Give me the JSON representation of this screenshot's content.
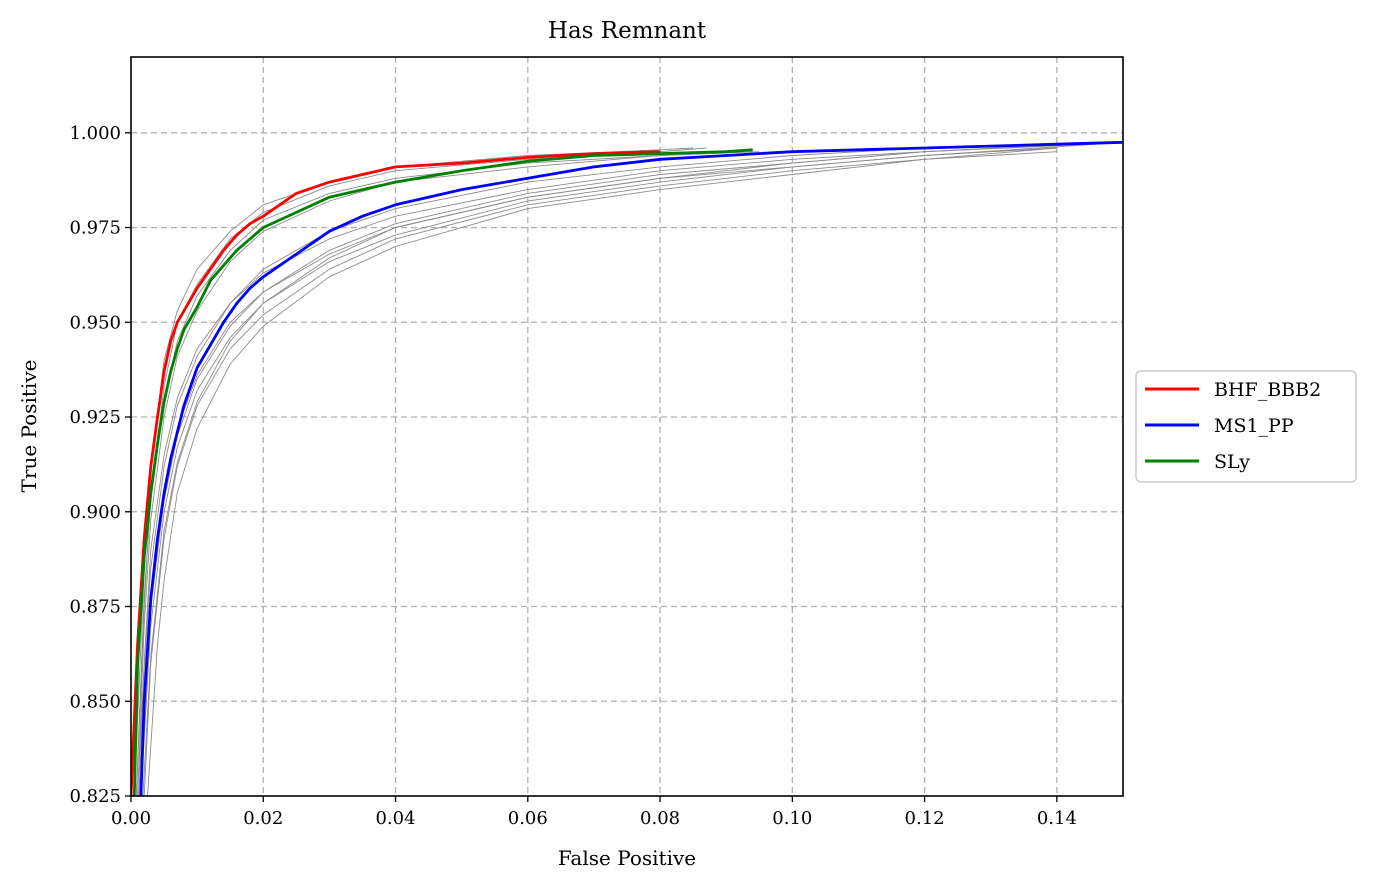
{
  "chart_data": {
    "type": "line",
    "title": "Has Remnant",
    "xlabel": "False Positive",
    "ylabel": "True Positive",
    "xlim": [
      0.0,
      0.15
    ],
    "ylim": [
      0.825,
      1.02
    ],
    "xticks": [
      0.0,
      0.02,
      0.04,
      0.06,
      0.08,
      0.1,
      0.12,
      0.14
    ],
    "xtick_labels": [
      "0.00",
      "0.02",
      "0.04",
      "0.06",
      "0.08",
      "0.10",
      "0.12",
      "0.14"
    ],
    "yticks": [
      0.825,
      0.85,
      0.875,
      0.9,
      0.925,
      0.95,
      0.975,
      1.0
    ],
    "ytick_labels": [
      "0.825",
      "0.850",
      "0.875",
      "0.900",
      "0.925",
      "0.950",
      "0.975",
      "1.000"
    ],
    "grid": true,
    "legend_position": "right, outside plot",
    "series": [
      {
        "name": "BHF_BBB2",
        "color": "#ff0000",
        "x": [
          0.0,
          0.001,
          0.002,
          0.003,
          0.004,
          0.005,
          0.006,
          0.007,
          0.008,
          0.009,
          0.01,
          0.012,
          0.014,
          0.016,
          0.018,
          0.02,
          0.025,
          0.03,
          0.035,
          0.04,
          0.05,
          0.06,
          0.07,
          0.08
        ],
        "y": [
          0.825,
          0.865,
          0.893,
          0.912,
          0.925,
          0.937,
          0.945,
          0.95,
          0.953,
          0.956,
          0.959,
          0.964,
          0.969,
          0.973,
          0.976,
          0.978,
          0.984,
          0.987,
          0.989,
          0.991,
          0.992,
          0.9935,
          0.9945,
          0.995
        ]
      },
      {
        "name": "MS1_PP",
        "color": "#0000ff",
        "x": [
          0.0015,
          0.002,
          0.003,
          0.004,
          0.005,
          0.006,
          0.007,
          0.008,
          0.009,
          0.01,
          0.012,
          0.014,
          0.016,
          0.018,
          0.02,
          0.025,
          0.03,
          0.035,
          0.04,
          0.05,
          0.06,
          0.07,
          0.08,
          0.09,
          0.1,
          0.11,
          0.12,
          0.13,
          0.14,
          0.15
        ],
        "y": [
          0.825,
          0.85,
          0.877,
          0.893,
          0.905,
          0.914,
          0.921,
          0.928,
          0.933,
          0.938,
          0.944,
          0.95,
          0.955,
          0.959,
          0.962,
          0.968,
          0.974,
          0.978,
          0.981,
          0.985,
          0.988,
          0.991,
          0.993,
          0.994,
          0.995,
          0.9955,
          0.996,
          0.9965,
          0.997,
          0.9975
        ]
      },
      {
        "name": "SLy",
        "color": "#008000",
        "x": [
          0.0005,
          0.001,
          0.002,
          0.003,
          0.004,
          0.005,
          0.006,
          0.007,
          0.008,
          0.009,
          0.01,
          0.012,
          0.014,
          0.016,
          0.018,
          0.02,
          0.025,
          0.03,
          0.035,
          0.04,
          0.05,
          0.06,
          0.07,
          0.08,
          0.09,
          0.094
        ],
        "y": [
          0.825,
          0.86,
          0.888,
          0.905,
          0.918,
          0.929,
          0.937,
          0.943,
          0.948,
          0.951,
          0.954,
          0.961,
          0.965,
          0.969,
          0.972,
          0.975,
          0.979,
          0.983,
          0.985,
          0.987,
          0.99,
          0.9925,
          0.994,
          0.9945,
          0.995,
          0.9955
        ]
      }
    ],
    "background_curves": [
      {
        "x": [
          0.0008,
          0.002,
          0.003,
          0.005,
          0.007,
          0.01,
          0.015,
          0.02,
          0.03,
          0.04,
          0.06,
          0.08,
          0.087
        ],
        "y": [
          0.825,
          0.875,
          0.905,
          0.933,
          0.95,
          0.96,
          0.972,
          0.979,
          0.986,
          0.99,
          0.993,
          0.995,
          0.996
        ]
      },
      {
        "x": [
          0.0005,
          0.002,
          0.003,
          0.005,
          0.007,
          0.01,
          0.015,
          0.02,
          0.03,
          0.04,
          0.06,
          0.08,
          0.085
        ],
        "y": [
          0.825,
          0.885,
          0.912,
          0.94,
          0.953,
          0.964,
          0.974,
          0.981,
          0.987,
          0.991,
          0.994,
          0.9955,
          0.996
        ]
      },
      {
        "x": [
          0.001,
          0.002,
          0.003,
          0.005,
          0.007,
          0.01,
          0.015,
          0.02,
          0.03,
          0.04,
          0.06,
          0.08,
          0.1,
          0.12,
          0.143
        ],
        "y": [
          0.825,
          0.86,
          0.89,
          0.915,
          0.93,
          0.943,
          0.955,
          0.963,
          0.972,
          0.978,
          0.985,
          0.99,
          0.993,
          0.995,
          0.997
        ]
      },
      {
        "x": [
          0.0012,
          0.002,
          0.003,
          0.005,
          0.007,
          0.01,
          0.015,
          0.02,
          0.03,
          0.04,
          0.06,
          0.08,
          0.1,
          0.12,
          0.145
        ],
        "y": [
          0.825,
          0.852,
          0.878,
          0.905,
          0.922,
          0.936,
          0.95,
          0.958,
          0.968,
          0.975,
          0.983,
          0.988,
          0.992,
          0.995,
          0.997
        ]
      },
      {
        "x": [
          0.0015,
          0.003,
          0.005,
          0.007,
          0.01,
          0.015,
          0.02,
          0.03,
          0.04,
          0.06,
          0.08,
          0.1,
          0.12,
          0.14
        ],
        "y": [
          0.825,
          0.87,
          0.9,
          0.917,
          0.932,
          0.946,
          0.955,
          0.966,
          0.973,
          0.982,
          0.987,
          0.991,
          0.994,
          0.996
        ]
      },
      {
        "x": [
          0.002,
          0.003,
          0.005,
          0.007,
          0.01,
          0.015,
          0.02,
          0.03,
          0.04,
          0.06,
          0.08,
          0.1,
          0.12,
          0.14
        ],
        "y": [
          0.825,
          0.86,
          0.893,
          0.912,
          0.928,
          0.943,
          0.952,
          0.964,
          0.972,
          0.981,
          0.986,
          0.99,
          0.993,
          0.996
        ]
      },
      {
        "x": [
          0.0025,
          0.004,
          0.005,
          0.007,
          0.01,
          0.015,
          0.02,
          0.03,
          0.04,
          0.06,
          0.08,
          0.1,
          0.12,
          0.14
        ],
        "y": [
          0.825,
          0.865,
          0.882,
          0.905,
          0.922,
          0.939,
          0.949,
          0.962,
          0.97,
          0.98,
          0.985,
          0.989,
          0.993,
          0.995
        ]
      },
      {
        "x": [
          0.001,
          0.002,
          0.003,
          0.005,
          0.007,
          0.01,
          0.015,
          0.02,
          0.03,
          0.04,
          0.06,
          0.08,
          0.09
        ],
        "y": [
          0.825,
          0.87,
          0.898,
          0.925,
          0.941,
          0.953,
          0.966,
          0.974,
          0.982,
          0.987,
          0.991,
          0.994,
          0.995
        ]
      },
      {
        "x": [
          0.0012,
          0.002,
          0.003,
          0.005,
          0.007,
          0.01,
          0.015,
          0.02,
          0.03,
          0.04,
          0.06,
          0.08,
          0.1,
          0.12,
          0.138
        ],
        "y": [
          0.825,
          0.858,
          0.885,
          0.912,
          0.928,
          0.941,
          0.955,
          0.964,
          0.974,
          0.98,
          0.987,
          0.991,
          0.994,
          0.996,
          0.997
        ]
      },
      {
        "x": [
          0.0018,
          0.003,
          0.005,
          0.007,
          0.01,
          0.015,
          0.02,
          0.03,
          0.04,
          0.06,
          0.08,
          0.1,
          0.12,
          0.146
        ],
        "y": [
          0.825,
          0.862,
          0.895,
          0.913,
          0.929,
          0.945,
          0.955,
          0.967,
          0.975,
          0.983,
          0.988,
          0.991,
          0.994,
          0.997
        ]
      },
      {
        "x": [
          0.0008,
          0.002,
          0.003,
          0.005,
          0.007,
          0.01,
          0.015,
          0.02,
          0.03,
          0.04,
          0.06,
          0.08,
          0.095
        ],
        "y": [
          0.825,
          0.878,
          0.903,
          0.929,
          0.945,
          0.957,
          0.969,
          0.977,
          0.984,
          0.988,
          0.992,
          0.994,
          0.995
        ]
      },
      {
        "x": [
          0.0014,
          0.003,
          0.005,
          0.007,
          0.01,
          0.015,
          0.02,
          0.03,
          0.04,
          0.06,
          0.08,
          0.1,
          0.12,
          0.142
        ],
        "y": [
          0.825,
          0.875,
          0.903,
          0.92,
          0.935,
          0.949,
          0.958,
          0.969,
          0.976,
          0.984,
          0.989,
          0.992,
          0.995,
          0.997
        ]
      }
    ]
  }
}
